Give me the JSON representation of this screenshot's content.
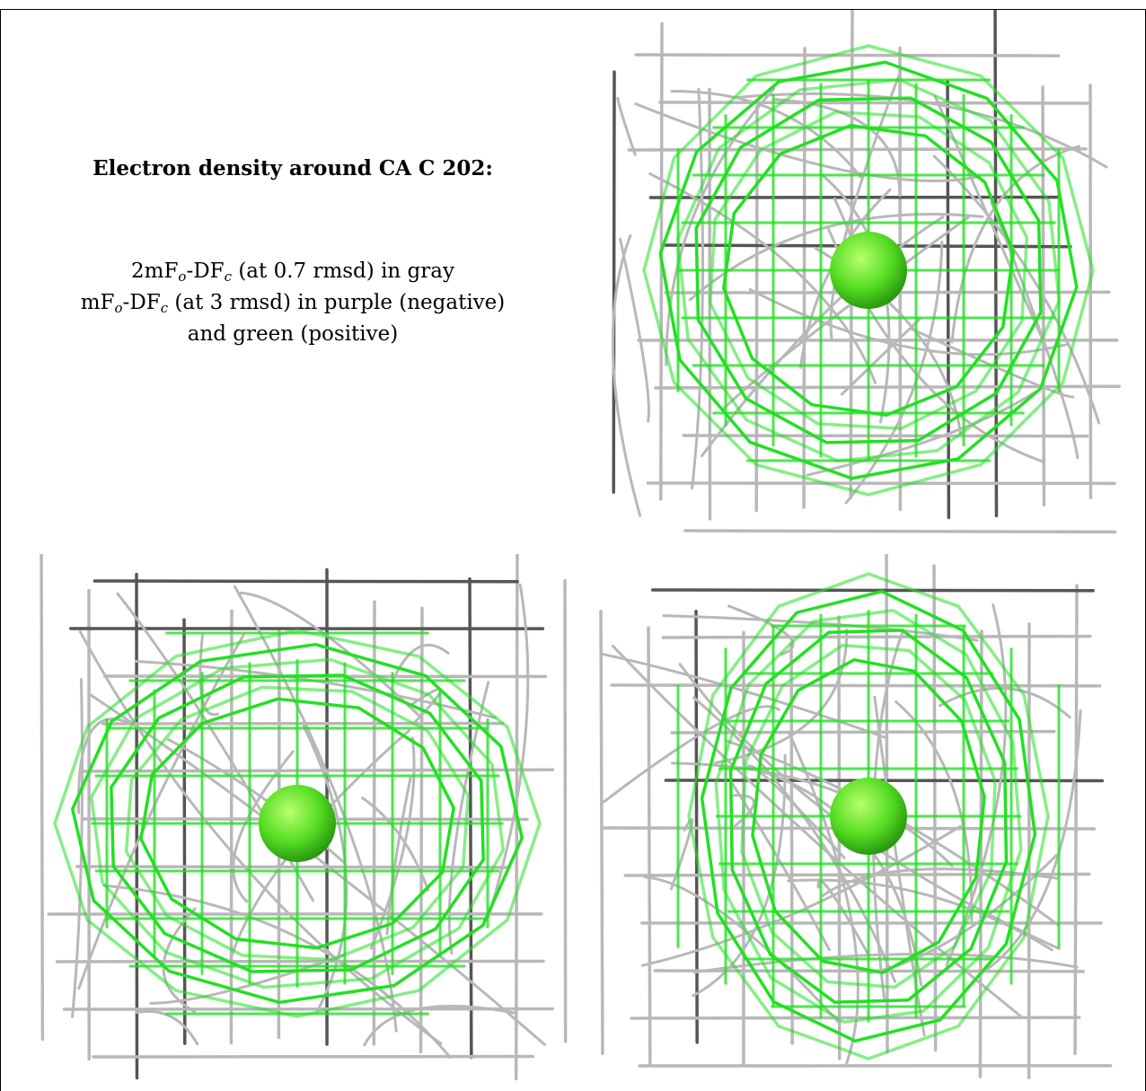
{
  "caption": {
    "title": "Electron density around CA C 202:",
    "line1": {
      "pre": "2mF",
      "s1": "o",
      "mid": "-DF",
      "s2": "c",
      "post": " (at 0.7 rmsd) in gray"
    },
    "line2": {
      "pre": "mF",
      "s1": "o",
      "mid": "-DF",
      "s2": "c",
      "post": " (at 3 rmsd) in purple (negative)"
    },
    "line3": "and green (positive)"
  },
  "colors": {
    "gray_mesh": "#b8b8b8",
    "dark_mesh": "#555555",
    "green_mesh": "#22e022",
    "atom": "#55dd22"
  },
  "panels": [
    {
      "name": "view-1",
      "icon": "electron-density-mesh"
    },
    {
      "name": "view-2",
      "icon": "electron-density-mesh"
    },
    {
      "name": "view-3",
      "icon": "electron-density-mesh"
    }
  ]
}
